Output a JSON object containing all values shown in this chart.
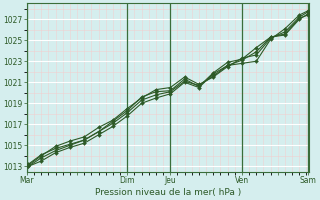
{
  "title": "",
  "xlabel": "Pression niveau de la mer( hPa )",
  "bg_color": "#d5eeee",
  "plot_bg_color": "#d5eeee",
  "grid_color": "#ffffff",
  "minor_grid_color": "#e8f8f8",
  "line_color": "#2d5a27",
  "ylim": [
    1012.5,
    1028.5
  ],
  "yticks": [
    1013,
    1015,
    1017,
    1019,
    1021,
    1023,
    1025,
    1027
  ],
  "xtick_labels": [
    "Mar",
    "",
    "Dim",
    "Jeu",
    "",
    "Ven",
    "",
    "Sam"
  ],
  "xtick_pos": [
    0,
    1.75,
    3.5,
    5.0,
    6.25,
    7.5,
    8.75,
    9.8
  ],
  "vline_positions": [
    0,
    3.5,
    5.0,
    7.5,
    9.8
  ],
  "xmin": 0,
  "xmax": 9.85,
  "series": [
    {
      "x": [
        0.05,
        0.5,
        1.0,
        1.5,
        2.0,
        2.5,
        3.0,
        3.5,
        4.0,
        4.5,
        5.0,
        5.5,
        6.0,
        6.5,
        7.0,
        7.5,
        8.0,
        8.5,
        9.0,
        9.5,
        9.8
      ],
      "y": [
        1013.2,
        1014.1,
        1014.7,
        1015.1,
        1015.5,
        1016.3,
        1017.3,
        1018.3,
        1019.6,
        1020.1,
        1020.2,
        1021.3,
        1020.6,
        1021.9,
        1022.9,
        1023.2,
        1024.3,
        1025.3,
        1025.5,
        1027.0,
        1027.5
      ]
    },
    {
      "x": [
        0.05,
        0.5,
        1.0,
        1.5,
        2.0,
        2.5,
        3.0,
        3.5,
        4.0,
        4.5,
        5.0,
        5.5,
        6.0,
        6.5,
        7.0,
        7.5,
        8.0,
        8.5,
        9.0,
        9.5,
        9.8
      ],
      "y": [
        1013.0,
        1013.5,
        1014.3,
        1014.8,
        1015.2,
        1016.0,
        1016.8,
        1017.8,
        1019.0,
        1019.5,
        1019.9,
        1021.0,
        1020.5,
        1021.8,
        1022.6,
        1022.8,
        1023.0,
        1025.1,
        1026.1,
        1027.4,
        1027.8
      ]
    },
    {
      "x": [
        0.05,
        0.5,
        1.0,
        1.5,
        2.0,
        2.5,
        3.0,
        3.5,
        4.0,
        4.5,
        5.0,
        5.5,
        6.0,
        6.5,
        7.0,
        7.5,
        8.0,
        8.5,
        9.0,
        9.5,
        9.8
      ],
      "y": [
        1013.1,
        1014.0,
        1014.9,
        1015.4,
        1015.8,
        1016.7,
        1017.4,
        1018.5,
        1019.5,
        1020.3,
        1020.5,
        1021.5,
        1020.8,
        1021.5,
        1022.5,
        1023.3,
        1023.6,
        1025.2,
        1025.8,
        1027.2,
        1027.7
      ]
    },
    {
      "x": [
        0.05,
        0.5,
        1.0,
        1.5,
        2.0,
        2.5,
        3.0,
        3.5,
        4.0,
        4.5,
        5.0,
        5.5,
        6.0,
        6.5,
        7.0,
        7.5,
        8.0,
        8.5,
        9.0,
        9.5,
        9.8
      ],
      "y": [
        1013.0,
        1013.8,
        1014.5,
        1015.0,
        1015.5,
        1016.3,
        1017.1,
        1018.1,
        1019.3,
        1019.8,
        1020.1,
        1021.1,
        1020.7,
        1021.6,
        1022.6,
        1023.1,
        1023.9,
        1025.3,
        1025.6,
        1027.1,
        1027.4
      ]
    }
  ]
}
